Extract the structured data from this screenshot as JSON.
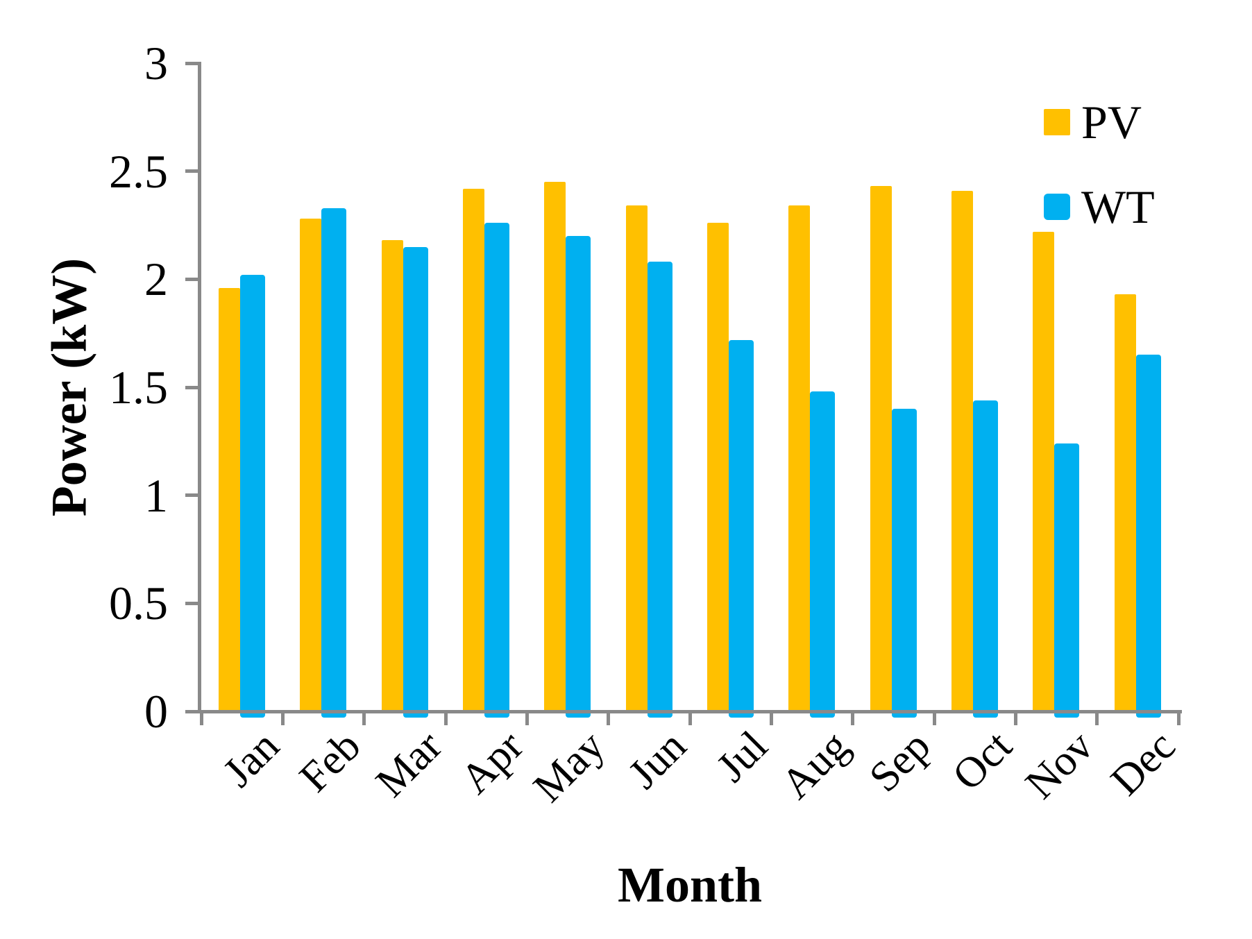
{
  "chart_data": {
    "type": "bar",
    "title": "",
    "xlabel": "Month",
    "ylabel": "Power (kW)",
    "categories": [
      "Jan",
      "Feb",
      "Mar",
      "Apr",
      "May",
      "Jun",
      "Jul",
      "Aug",
      "Sep",
      "Oct",
      "Nov",
      "Dec"
    ],
    "series": [
      {
        "name": "PV",
        "color": "#FFC000",
        "values": [
          1.96,
          2.28,
          2.18,
          2.42,
          2.45,
          2.34,
          2.26,
          2.34,
          2.43,
          2.41,
          2.22,
          1.93
        ]
      },
      {
        "name": "WT",
        "color": "#00B0F0",
        "values": [
          2.02,
          2.33,
          2.15,
          2.26,
          2.2,
          2.08,
          1.72,
          1.48,
          1.4,
          1.44,
          1.24,
          1.65
        ]
      }
    ],
    "ylim": [
      0,
      3
    ],
    "yticks": [
      0,
      0.5,
      1,
      1.5,
      2,
      2.5,
      3
    ],
    "ytick_labels": [
      "0",
      "0.5",
      "1",
      "1.5",
      "2",
      "2.5",
      "3"
    ],
    "grid": false,
    "legend_position": "top-right",
    "axis_color": "#898989",
    "background_color": "#FFFFFF"
  }
}
